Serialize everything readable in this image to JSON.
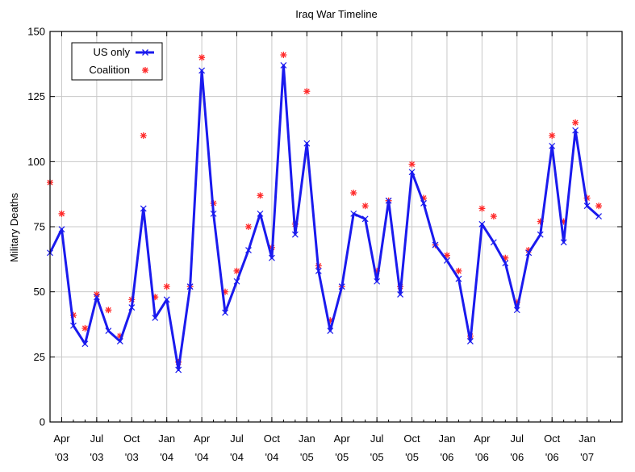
{
  "chart_data": {
    "type": "line",
    "title": "Iraq War Timeline",
    "xlabel": "",
    "ylabel": "Military Deaths",
    "ylim": [
      0,
      150
    ],
    "yticks": [
      0,
      25,
      50,
      75,
      100,
      125,
      150
    ],
    "xlim": [
      "2003-03",
      "2007-04"
    ],
    "x_ticks": [
      {
        "month": "Apr",
        "year": "'03"
      },
      {
        "month": "Jul",
        "year": "'03"
      },
      {
        "month": "Oct",
        "year": "'03"
      },
      {
        "month": "Jan",
        "year": "'04"
      },
      {
        "month": "Apr",
        "year": "'04"
      },
      {
        "month": "Jul",
        "year": "'04"
      },
      {
        "month": "Oct",
        "year": "'04"
      },
      {
        "month": "Jan",
        "year": "'05"
      },
      {
        "month": "Apr",
        "year": "'05"
      },
      {
        "month": "Jul",
        "year": "'05"
      },
      {
        "month": "Oct",
        "year": "'05"
      },
      {
        "month": "Jan",
        "year": "'06"
      },
      {
        "month": "Apr",
        "year": "'06"
      },
      {
        "month": "Jul",
        "year": "'06"
      },
      {
        "month": "Oct",
        "year": "'06"
      },
      {
        "month": "Jan",
        "year": "'07"
      }
    ],
    "grid": true,
    "legend_position": "top-left",
    "x": [
      "2003-03",
      "2003-04",
      "2003-05",
      "2003-06",
      "2003-07",
      "2003-08",
      "2003-09",
      "2003-10",
      "2003-11",
      "2003-12",
      "2004-01",
      "2004-02",
      "2004-03",
      "2004-04",
      "2004-05",
      "2004-06",
      "2004-07",
      "2004-08",
      "2004-09",
      "2004-10",
      "2004-11",
      "2004-12",
      "2005-01",
      "2005-02",
      "2005-03",
      "2005-04",
      "2005-05",
      "2005-06",
      "2005-07",
      "2005-08",
      "2005-09",
      "2005-10",
      "2005-11",
      "2005-12",
      "2006-01",
      "2006-02",
      "2006-03",
      "2006-04",
      "2006-05",
      "2006-06",
      "2006-07",
      "2006-08",
      "2006-09",
      "2006-10",
      "2006-11",
      "2006-12",
      "2007-01",
      "2007-02"
    ],
    "series": [
      {
        "name": "US only",
        "style": "line-x",
        "color": "#1a1aee",
        "values": [
          65,
          74,
          37,
          30,
          48,
          35,
          31,
          44,
          82,
          40,
          47,
          20,
          52,
          135,
          80,
          42,
          54,
          66,
          80,
          63,
          137,
          72,
          107,
          58,
          35,
          52,
          80,
          78,
          54,
          85,
          49,
          96,
          84,
          68,
          62,
          55,
          31,
          76,
          69,
          61,
          43,
          65,
          72,
          106,
          69,
          112,
          83,
          79
        ]
      },
      {
        "name": "Coalition",
        "style": "marker",
        "color": "#ff2a2a",
        "values": [
          92,
          80,
          41,
          36,
          49,
          43,
          33,
          47,
          110,
          48,
          52,
          23,
          52,
          140,
          84,
          50,
          58,
          75,
          87,
          67,
          141,
          76,
          127,
          60,
          39,
          52,
          88,
          83,
          58,
          85,
          52,
          99,
          86,
          68,
          64,
          58,
          33,
          82,
          79,
          63,
          46,
          66,
          77,
          110,
          77,
          115,
          86,
          83
        ]
      }
    ]
  }
}
